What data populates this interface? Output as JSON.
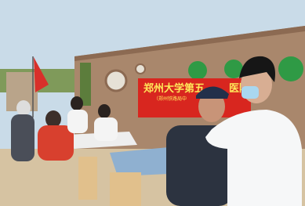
{
  "banner": {
    "title_left": "郑州大学第五",
    "title_right": "医院",
    "subtitle": "（郑州铁路局中"
  }
}
